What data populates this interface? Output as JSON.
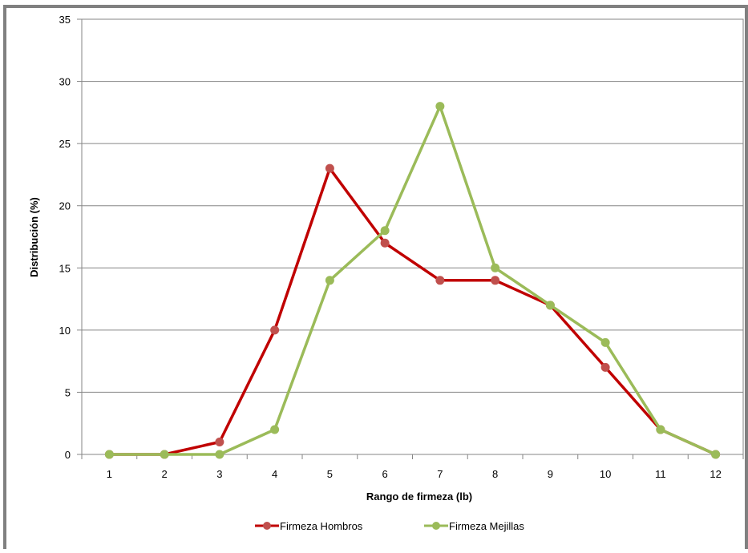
{
  "chart_data": {
    "type": "line",
    "title": "",
    "xlabel": "Rango de firmeza (lb)",
    "ylabel": "Distribución (%)",
    "x": [
      1,
      2,
      3,
      4,
      5,
      6,
      7,
      8,
      9,
      10,
      11,
      12
    ],
    "x_tick_labels": [
      "1",
      "2",
      "3",
      "4",
      "5",
      "6",
      "7",
      "8",
      "9",
      "10",
      "11",
      "12"
    ],
    "ylim": [
      0,
      35
    ],
    "y_ticks": [
      0,
      5,
      10,
      15,
      20,
      25,
      30,
      35
    ],
    "y_tick_labels": [
      "0",
      "5",
      "10",
      "15",
      "20",
      "25",
      "30",
      "35"
    ],
    "grid": "horizontal",
    "legend_position": "bottom",
    "series": [
      {
        "name": "Firmeza Hombros",
        "color": "#C00000",
        "marker_color": "#C0504D",
        "values": [
          0,
          0,
          1,
          10,
          23,
          17,
          14,
          14,
          12,
          7,
          2,
          0
        ]
      },
      {
        "name": "Firmeza Mejillas",
        "color": "#9BBB59",
        "marker_color": "#9BBB59",
        "values": [
          0,
          0,
          0,
          2,
          14,
          18,
          28,
          15,
          12,
          9,
          2,
          0
        ]
      }
    ],
    "frame_color": "#808080"
  }
}
